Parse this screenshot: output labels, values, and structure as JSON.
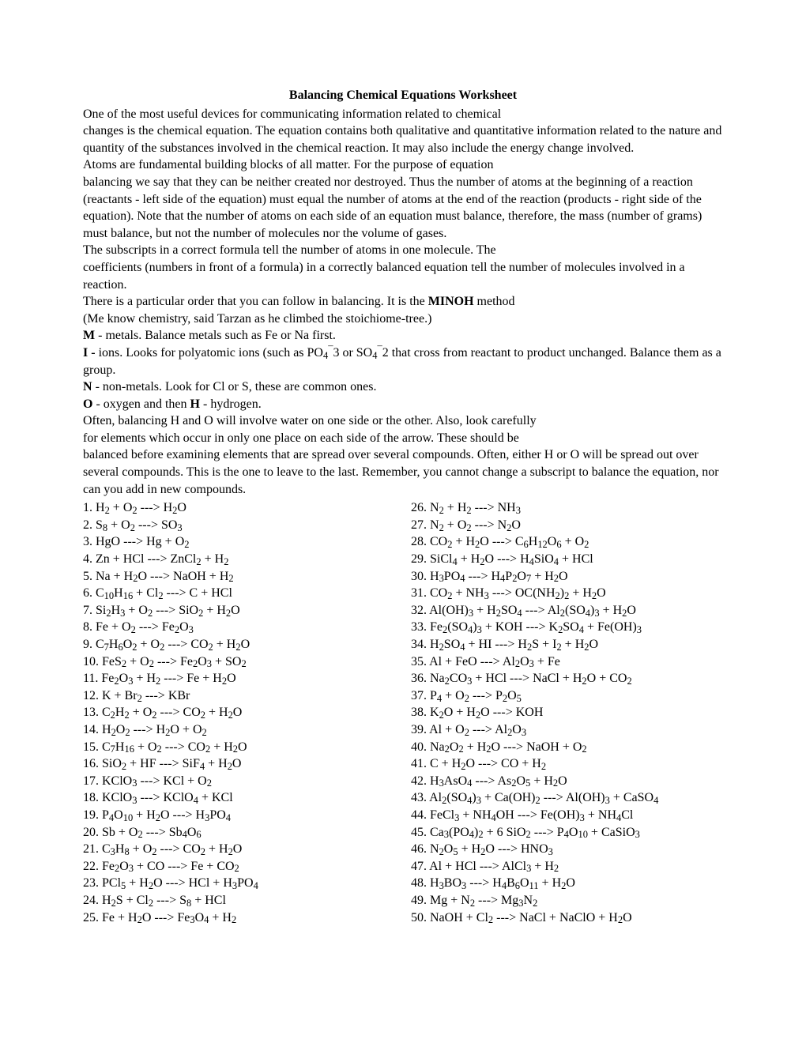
{
  "title": "Balancing Chemical Equations Worksheet",
  "intro": [
    "One of the most useful devices for communicating information related to chemical",
    "changes is the chemical equation. The equation contains both qualitative and quantitative information related to the nature and quantity of the substances involved in the chemical reaction. It may also include the energy change involved.",
    "Atoms are fundamental building blocks of all matter. For the purpose of equation",
    "balancing we say that they can be neither created nor destroyed. Thus the number of atoms at the beginning of a reaction (reactants - left side of the equation) must equal the number of atoms at the end of the reaction (products - right side of the equation). Note that the number of atoms on each side of an equation must balance, therefore, the mass (number of grams) must balance, but not the number of molecules nor the volume of gases.",
    "The subscripts in a correct formula tell the number of atoms in one molecule. The",
    "coefficients (numbers in front of a formula) in a correctly balanced equation tell the number of molecules involved in a reaction."
  ],
  "minoh_lead_pre": "There is a particular order that you can follow in balancing. It is the ",
  "minoh_word": "MINOH",
  "minoh_lead_post": " method",
  "minoh_tarzan": "(Me know chemistry, said Tarzan as he climbed the stoichiome-tree.)",
  "rules": {
    "m": {
      "label": "M",
      "text": " - metals. Balance metals such as Fe or Na first."
    },
    "i": {
      "label": "I -",
      "text_pre": " ions. Looks for polyatomic ions (such as PO",
      "text_post": " that cross from reactant to product unchanged. Balance them as a group."
    },
    "n": {
      "label": "N",
      "text": " - non-metals. Look for Cl or S, these are common ones."
    },
    "oh": {
      "label_o": "O",
      "mid": " - oxygen and then ",
      "label_h": "H",
      "text": " - hydrogen."
    }
  },
  "closing": [
    "Often, balancing H and O will involve water on one side or the other. Also, look carefully",
    "for elements which occur in only one place on each side of the arrow. These should be",
    "balanced before examining elements that are spread over several compounds. Often, either H or O will be spread out over several compounds. This is the one to leave to the last. Remember, you cannot change a subscript to balance the equation, nor can you add in new compounds."
  ],
  "arrow": "--->",
  "equations_left": [
    {
      "n": "1",
      "html": "H<sub>2</sub> + O<sub>2</sub> ---> H<sub>2</sub>O"
    },
    {
      "n": "2",
      "html": "S<sub>8</sub> + O<sub>2</sub> ---> SO<sub>3</sub>"
    },
    {
      "n": "3",
      "html": "HgO ---> Hg + O<sub>2</sub>"
    },
    {
      "n": "4",
      "html": "Zn + HCl ---> ZnCl<sub>2</sub> + H<sub>2</sub>"
    },
    {
      "n": "5",
      "html": "Na + H<sub>2</sub>O ---> NaOH + H<sub>2</sub>"
    },
    {
      "n": "6",
      "html": "C<sub>10</sub>H<sub>16</sub> + Cl<sub>2</sub> ---> C + HCl"
    },
    {
      "n": "7",
      "html": "Si<sub>2</sub>H<sub>3</sub> + O<sub>2</sub> ---> SiO<sub>2</sub> + H<sub>2</sub>O"
    },
    {
      "n": "8",
      "html": "Fe + O<sub>2</sub> ---> Fe<sub>2</sub>O<sub>3</sub>"
    },
    {
      "n": "9",
      "html": "C<sub>7</sub>H<sub>6</sub>O<sub>2</sub> + O<sub>2</sub> ---> CO<sub>2</sub> + H<sub>2</sub>O"
    },
    {
      "n": "10",
      "html": "FeS<sub>2</sub> + O<sub>2</sub> ---> Fe<sub>2</sub>O<sub>3</sub> + SO<sub>2</sub>"
    },
    {
      "n": "11",
      "html": "Fe<sub>2</sub>O<sub>3</sub> + H<sub>2</sub> ---> Fe + H<sub>2</sub>O"
    },
    {
      "n": "12",
      "html": "K + Br<sub>2</sub> ---> KBr"
    },
    {
      "n": "13",
      "html": "C<sub>2</sub>H<sub>2</sub> + O<sub>2</sub> ---> CO<sub>2</sub> + H<sub>2</sub>O"
    },
    {
      "n": "14",
      "html": "H<sub>2</sub>O<sub>2</sub> ---> H<sub>2</sub>O + O<sub>2</sub>"
    },
    {
      "n": "15",
      "html": "C<sub>7</sub>H<sub>16</sub> + O<sub>2</sub> ---> CO<sub>2</sub> + H<sub>2</sub>O"
    },
    {
      "n": "16",
      "html": "SiO<sub>2</sub> + HF ---> SiF<sub>4</sub> + H<sub>2</sub>O"
    },
    {
      "n": "17",
      "html": "KClO<sub>3</sub> ---> KCl + O<sub>2</sub>"
    },
    {
      "n": "18",
      "html": "KClO<sub>3</sub> ---> KClO<sub>4</sub> + KCl"
    },
    {
      "n": "19",
      "html": "P<sub>4</sub>O<sub>10</sub> + H<sub>2</sub>O ---> H<sub>3</sub>PO<sub>4</sub>"
    },
    {
      "n": "20",
      "html": "Sb + O<sub>2</sub> ---> Sb<sub>4</sub>O<sub>6</sub>"
    },
    {
      "n": "21",
      "html": "C<sub>3</sub>H<sub>8</sub> + O<sub>2</sub> ---> CO<sub>2</sub> + H<sub>2</sub>O"
    },
    {
      "n": "22",
      "html": "Fe<sub>2</sub>O<sub>3</sub> + CO ---> Fe + CO<sub>2</sub>"
    },
    {
      "n": "23",
      "html": "PCl<sub>5</sub> + H<sub>2</sub>O ---> HCl + H<sub>3</sub>PO<sub>4</sub>"
    },
    {
      "n": "24",
      "html": "H<sub>2</sub>S + Cl<sub>2</sub> ---> S<sub>8</sub> + HCl"
    },
    {
      "n": "25",
      "html": "Fe + H<sub>2</sub>O ---> Fe<sub>3</sub>O<sub>4</sub> + H<sub>2</sub>"
    }
  ],
  "equations_right": [
    {
      "n": "26",
      "html": "N<sub>2</sub> + H<sub>2</sub> ---> NH<sub>3</sub>"
    },
    {
      "n": "27",
      "html": "N<sub>2</sub> + O<sub>2</sub> ---> N<sub>2</sub>O"
    },
    {
      "n": "28",
      "pre": " ",
      "html": "CO<sub>2</sub> + H<sub>2</sub>O ---> C<sub>6</sub>H<sub>12</sub>O<sub>6</sub> + O<sub>2</sub>"
    },
    {
      "n": "29",
      "html": "SiCl<sub>4</sub> + H<sub>2</sub>O ---> H<sub>4</sub>SiO<sub>4</sub> + HCl"
    },
    {
      "n": "30",
      "html": "H<sub>3</sub>PO<sub>4</sub> ---> H<sub>4</sub>P<sub>2</sub>O<sub>7</sub> + H<sub>2</sub>O"
    },
    {
      "n": "31",
      "html": "CO<sub>2</sub> + NH<sub>3</sub> ---> OC(NH<sub>2</sub>)<sub>2</sub> + H<sub>2</sub>O"
    },
    {
      "n": "32",
      "html": "Al(OH)<sub>3</sub> + H<sub>2</sub>SO<sub>4</sub> ---> Al<sub>2</sub>(SO<sub>4</sub>)<sub>3</sub> + H<sub>2</sub>O"
    },
    {
      "n": "33",
      "html": "Fe<sub>2</sub>(SO<sub>4</sub>)<sub>3</sub> + KOH ---> K<sub>2</sub>SO<sub>4</sub> + Fe(OH)<sub>3</sub>"
    },
    {
      "n": "34",
      "html": "H<sub>2</sub>SO<sub>4</sub> + HI ---> H<sub>2</sub>S + I<sub>2</sub> + H<sub>2</sub>O"
    },
    {
      "n": "35",
      "html": "Al + FeO ---> Al<sub>2</sub>O<sub>3</sub> + Fe"
    },
    {
      "n": "36",
      "html": "Na<sub>2</sub>CO<sub>3</sub> + HCl ---> NaCl + H<sub>2</sub>O + CO<sub>2</sub>"
    },
    {
      "n": "37",
      "html": "P<sub>4</sub> + O<sub>2</sub> ---> P<sub>2</sub>O<sub>5</sub>"
    },
    {
      "n": "38",
      "html": "K<sub>2</sub>O + H<sub>2</sub>O ---> KOH"
    },
    {
      "n": "39",
      "html": "Al + O<sub>2</sub> ---> Al<sub>2</sub>O<sub>3</sub>"
    },
    {
      "n": "40",
      "html": "Na<sub>2</sub>O<sub>2</sub> + H<sub>2</sub>O ---> NaOH + O<sub>2</sub>"
    },
    {
      "n": "41",
      "html": "C + H<sub>2</sub>O ---> CO + H<sub>2</sub>"
    },
    {
      "n": "42",
      "html": "H<sub>3</sub>AsO<sub>4</sub> ---> As<sub>2</sub>O<sub>5</sub> + H<sub>2</sub>O"
    },
    {
      "n": "43",
      "html": "Al<sub>2</sub>(SO<sub>4</sub>)<sub>3</sub> + Ca(OH)<sub>2</sub> ---> Al(OH)<sub>3</sub> + CaSO<sub>4</sub>"
    },
    {
      "n": "44",
      "html": "FeCl<sub>3</sub> + NH<sub>4</sub>OH ---> Fe(OH)<sub>3</sub> + NH<sub>4</sub>Cl"
    },
    {
      "n": "45",
      "html": "Ca<sub>3</sub>(PO<sub>4</sub>)<sub>2</sub> + 6 SiO<sub>2</sub> ---> P<sub>4</sub>O<sub>10</sub> + CaSiO<sub>3</sub>"
    },
    {
      "n": "46",
      "html": "N<sub>2</sub>O<sub>5</sub> + H<sub>2</sub>O ---> HNO<sub>3</sub>"
    },
    {
      "n": "47",
      "html": "Al + HCl ---> AlCl<sub>3</sub> + H<sub>2</sub>"
    },
    {
      "n": "48",
      "html": "H<sub>3</sub>BO<sub>3</sub> ---> H<sub>4</sub>B<sub>6</sub>O<sub>11</sub> + H<sub>2</sub>O"
    },
    {
      "n": "49",
      "html": "Mg + N<sub>2</sub> ---> Mg<sub>3</sub>N<sub>2</sub>"
    },
    {
      "n": "50",
      "html": "NaOH + Cl<sub>2</sub> ---> NaCl + NaClO + H<sub>2</sub>O"
    }
  ]
}
